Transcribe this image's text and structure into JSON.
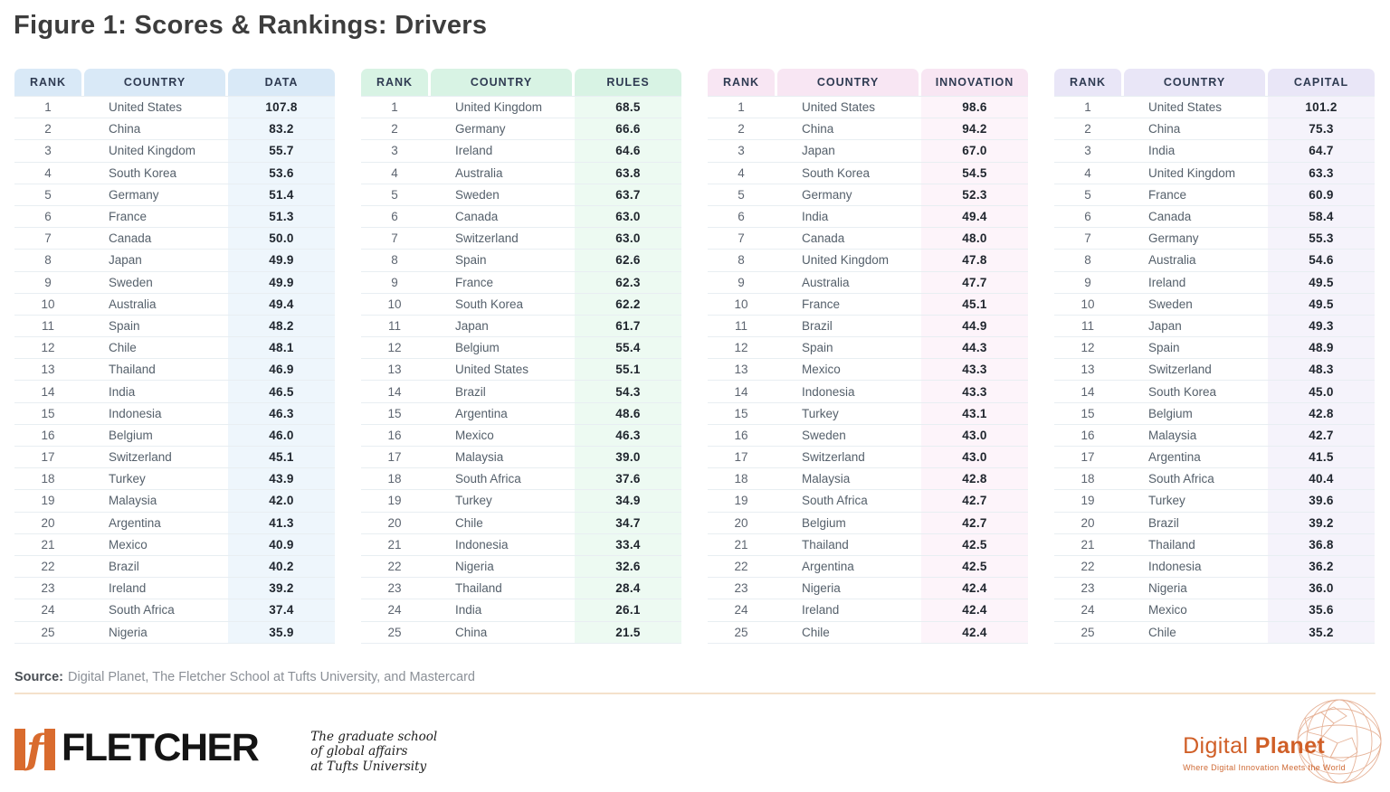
{
  "title": "Figure 1: Scores & Rankings: Drivers",
  "ranks": [
    1,
    2,
    3,
    4,
    5,
    6,
    7,
    8,
    9,
    10,
    11,
    12,
    13,
    14,
    15,
    16,
    17,
    18,
    19,
    20,
    21,
    22,
    23,
    24,
    25
  ],
  "chart_data": [
    {
      "type": "table",
      "metric": "DATA",
      "columns": [
        "RANK",
        "COUNTRY",
        "DATA"
      ],
      "header_bg": "#d9e9f7",
      "band_bg": "#eef6fc",
      "countries": [
        "United States",
        "China",
        "United Kingdom",
        "South Korea",
        "Germany",
        "France",
        "Canada",
        "Japan",
        "Sweden",
        "Australia",
        "Spain",
        "Chile",
        "Thailand",
        "India",
        "Indonesia",
        "Belgium",
        "Switzerland",
        "Turkey",
        "Malaysia",
        "Argentina",
        "Mexico",
        "Brazil",
        "Ireland",
        "South Africa",
        "Nigeria"
      ],
      "values": [
        107.8,
        83.2,
        55.7,
        53.6,
        51.4,
        51.3,
        50.0,
        49.9,
        49.9,
        49.4,
        48.2,
        48.1,
        46.9,
        46.5,
        46.3,
        46.0,
        45.1,
        43.9,
        42.0,
        41.3,
        40.9,
        40.2,
        39.2,
        37.4,
        35.9
      ]
    },
    {
      "type": "table",
      "metric": "RULES",
      "columns": [
        "RANK",
        "COUNTRY",
        "RULES"
      ],
      "header_bg": "#d8f3e4",
      "band_bg": "#edfaf2",
      "countries": [
        "United Kingdom",
        "Germany",
        "Ireland",
        "Australia",
        "Sweden",
        "Canada",
        "Switzerland",
        "Spain",
        "France",
        "South Korea",
        "Japan",
        "Belgium",
        "United States",
        "Brazil",
        "Argentina",
        "Mexico",
        "Malaysia",
        "South Africa",
        "Turkey",
        "Chile",
        "Indonesia",
        "Nigeria",
        "Thailand",
        "India",
        "China"
      ],
      "values": [
        68.5,
        66.6,
        64.6,
        63.8,
        63.7,
        63.0,
        63.0,
        62.6,
        62.3,
        62.2,
        61.7,
        55.4,
        55.1,
        54.3,
        48.6,
        46.3,
        39.0,
        37.6,
        34.9,
        34.7,
        33.4,
        32.6,
        28.4,
        26.1,
        21.5
      ]
    },
    {
      "type": "table",
      "metric": "INNOVATION",
      "columns": [
        "RANK",
        "COUNTRY",
        "INNOVATION"
      ],
      "header_bg": "#f8e6f3",
      "band_bg": "#fdf4fa",
      "countries": [
        "United States",
        "China",
        "Japan",
        "South Korea",
        "Germany",
        "India",
        "Canada",
        "United Kingdom",
        "Australia",
        "France",
        "Brazil",
        "Spain",
        "Mexico",
        "Indonesia",
        "Turkey",
        "Sweden",
        "Switzerland",
        "Malaysia",
        "South Africa",
        "Belgium",
        "Thailand",
        "Argentina",
        "Nigeria",
        "Ireland",
        "Chile"
      ],
      "values": [
        98.6,
        94.2,
        67.0,
        54.5,
        52.3,
        49.4,
        48.0,
        47.8,
        47.7,
        45.1,
        44.9,
        44.3,
        43.3,
        43.3,
        43.1,
        43.0,
        43.0,
        42.8,
        42.7,
        42.7,
        42.5,
        42.5,
        42.4,
        42.4,
        42.4
      ]
    },
    {
      "type": "table",
      "metric": "CAPITAL",
      "columns": [
        "RANK",
        "COUNTRY",
        "CAPITAL"
      ],
      "header_bg": "#e9e6f7",
      "band_bg": "#f5f3fb",
      "countries": [
        "United States",
        "China",
        "India",
        "United Kingdom",
        "France",
        "Canada",
        "Germany",
        "Australia",
        "Ireland",
        "Sweden",
        "Japan",
        "Spain",
        "Switzerland",
        "South Korea",
        "Belgium",
        "Malaysia",
        "Argentina",
        "South Africa",
        "Turkey",
        "Brazil",
        "Thailand",
        "Indonesia",
        "Nigeria",
        "Mexico",
        "Chile"
      ],
      "values": [
        101.2,
        75.3,
        64.7,
        63.3,
        60.9,
        58.4,
        55.3,
        54.6,
        49.5,
        49.5,
        49.3,
        48.9,
        48.3,
        45.0,
        42.8,
        42.7,
        41.5,
        40.4,
        39.6,
        39.2,
        36.8,
        36.2,
        36.0,
        35.6,
        35.2
      ]
    }
  ],
  "source": {
    "label": "Source:",
    "text": "Digital Planet, The Fletcher School at Tufts University, and Mastercard"
  },
  "footer": {
    "fletcher": {
      "letter": "f",
      "wordmark": "FLETCHER",
      "tagline": [
        "The graduate school",
        "of global affairs",
        "at Tufts University"
      ],
      "orange": "#d96b2e"
    },
    "digital_planet": {
      "name_regular": "Digital ",
      "name_bold": "Planet",
      "tagline": "Where Digital Innovation Meets the World",
      "orange": "#d05f27"
    }
  },
  "colors": {
    "rule": "#f4e1cb",
    "row_separator": "#e8eef2",
    "header_text": "#2f3b52",
    "value_text": "#20262e"
  }
}
